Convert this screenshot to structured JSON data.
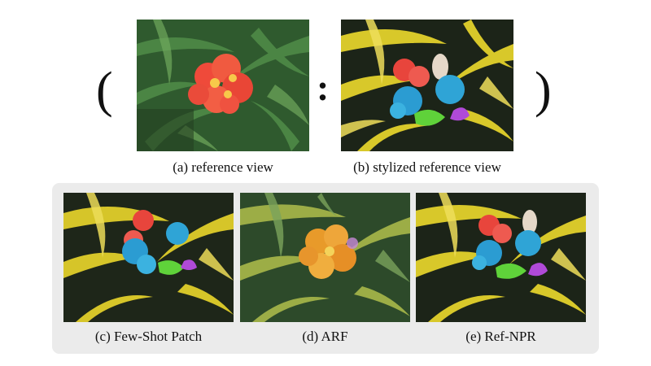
{
  "symbols": {
    "open_paren": "(",
    "colon": ":",
    "close_paren": ")"
  },
  "top_row": {
    "reference_caption": "(a) reference view",
    "stylized_caption": "(b) stylized reference view"
  },
  "bottom_row": {
    "few_shot_caption": "(c) Few-Shot Patch",
    "arf_caption": "(d) ARF",
    "ref_npr_caption": "(e) Ref-NPR"
  },
  "colors": {
    "panel_background": "#ebebeb",
    "photo_leaves": "#3d6b3a",
    "photo_flower": "#f0503f",
    "stylized_leaves": "#d8c82a",
    "stylized_dark": "#1c2418",
    "stylized_blue": "#2fa4d6",
    "stylized_green": "#5fd23a",
    "stylized_purple": "#b04ad8"
  }
}
